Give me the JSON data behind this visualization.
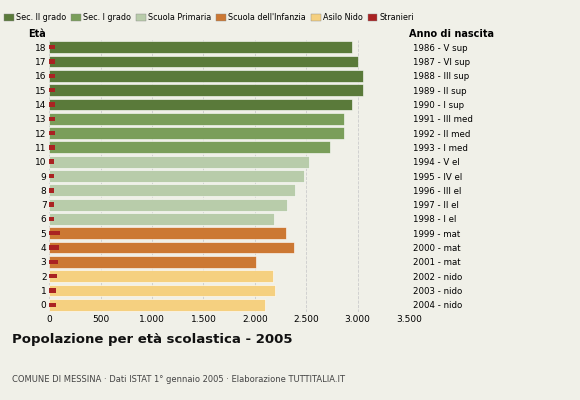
{
  "ages": [
    18,
    17,
    16,
    15,
    14,
    13,
    12,
    11,
    10,
    9,
    8,
    7,
    6,
    5,
    4,
    3,
    2,
    1,
    0
  ],
  "birth_years": [
    "1986 - V sup",
    "1987 - VI sup",
    "1988 - III sup",
    "1989 - II sup",
    "1990 - I sup",
    "1991 - III med",
    "1992 - II med",
    "1993 - I med",
    "1994 - V el",
    "1995 - IV el",
    "1996 - III el",
    "1997 - II el",
    "1998 - I el",
    "1999 - mat",
    "2000 - mat",
    "2001 - mat",
    "2002 - nido",
    "2003 - nido",
    "2004 - nido"
  ],
  "bar_values": [
    2950,
    3000,
    3050,
    3050,
    2950,
    2870,
    2870,
    2730,
    2530,
    2480,
    2390,
    2310,
    2190,
    2300,
    2380,
    2010,
    2175,
    2200,
    2100
  ],
  "stranieri_values": [
    60,
    60,
    60,
    60,
    60,
    60,
    55,
    55,
    50,
    50,
    50,
    50,
    45,
    100,
    90,
    80,
    75,
    70,
    70
  ],
  "bar_colors": [
    "#5a7a3a",
    "#5a7a3a",
    "#5a7a3a",
    "#5a7a3a",
    "#5a7a3a",
    "#7a9e5a",
    "#7a9e5a",
    "#7a9e5a",
    "#b8ccaa",
    "#b8ccaa",
    "#b8ccaa",
    "#b8ccaa",
    "#b8ccaa",
    "#cc7833",
    "#cc7833",
    "#cc7833",
    "#f5d080",
    "#f5d080",
    "#f5d080"
  ],
  "legend_labels": [
    "Sec. II grado",
    "Sec. I grado",
    "Scuola Primaria",
    "Scuola dell'Infanzia",
    "Asilo Nido",
    "Stranieri"
  ],
  "legend_colors": [
    "#5a7a3a",
    "#7a9e5a",
    "#b8ccaa",
    "#cc7833",
    "#f5d080",
    "#aa2222"
  ],
  "stranieri_color": "#aa2222",
  "title": "Popolazione per età scolastica - 2005",
  "subtitle": "COMUNE DI MESSINA · Dati ISTAT 1° gennaio 2005 · Elaborazione TUTTITALIA.IT",
  "xlabel_eta": "Età",
  "xlabel_anno": "Anno di nascita",
  "xlim": [
    0,
    3500
  ],
  "xticks": [
    0,
    500,
    1000,
    1500,
    2000,
    2500,
    3000,
    3500
  ],
  "xtick_labels": [
    "0",
    "500",
    "1.000",
    "1.500",
    "2.000",
    "2.500",
    "3.000",
    "3.500"
  ],
  "bg_color": "#f0f0e8",
  "bar_height": 0.82,
  "grid_color": "#cccccc"
}
